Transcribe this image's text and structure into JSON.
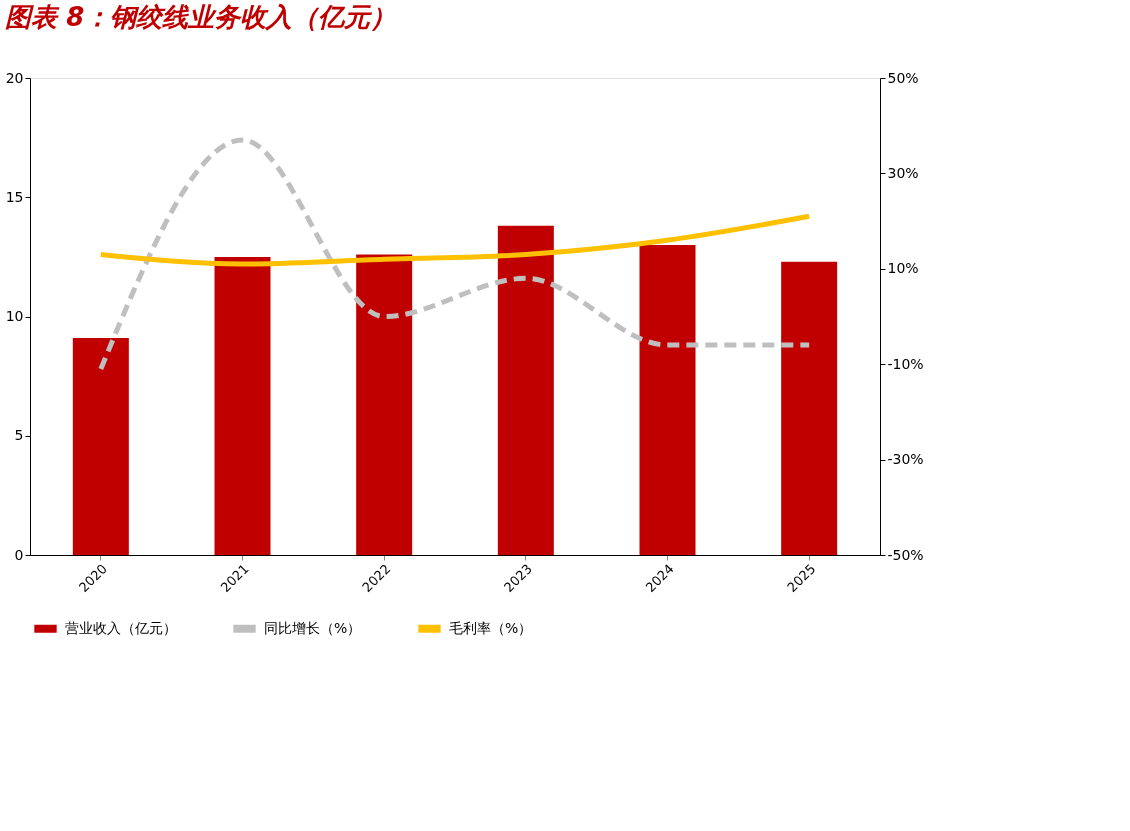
{
  "chart_data": {
    "type": "bar",
    "title": "图表 8：钢绞线业务收入（亿元）",
    "categories": [
      "2020",
      "2021",
      "2022",
      "2023",
      "2024",
      "2025"
    ],
    "series": [
      {
        "name": "营业收入（亿元）",
        "color": "#c00000",
        "values": [
          9.1,
          12.5,
          12.6,
          13.8,
          13.0,
          12.3
        ]
      },
      {
        "name": "同比增长（%）",
        "color": "#bfbfbf",
        "type": "line",
        "axis": "y2",
        "line_style": "dashed",
        "values": [
          -11,
          37,
          0,
          8,
          -6,
          -6
        ]
      },
      {
        "name": "毛利率（%）",
        "color": "#ffc000",
        "type": "line",
        "axis": "y2",
        "line_style": "solid",
        "values": [
          13,
          11,
          12,
          13,
          16,
          21
        ]
      }
    ],
    "ylim": [
      0,
      20
    ],
    "yticks": [
      0,
      5,
      10,
      15,
      20
    ],
    "y2lim": [
      -50,
      50
    ],
    "y2ticks": [
      {
        "value": -50,
        "label": "-50%"
      },
      {
        "value": -30,
        "label": "-30%"
      },
      {
        "value": -10,
        "label": "-10%"
      },
      {
        "value": 10,
        "label": "10%"
      },
      {
        "value": 30,
        "label": "30%"
      },
      {
        "value": 50,
        "label": "50%"
      }
    ],
    "grid": false,
    "legend": "bottom",
    "marker": "none"
  }
}
